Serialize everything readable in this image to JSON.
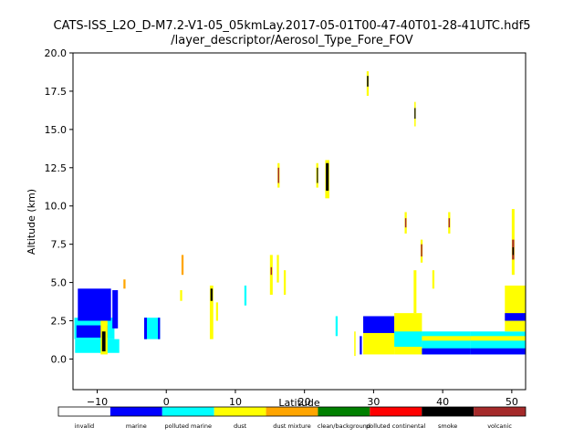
{
  "chart_data": {
    "type": "scatter",
    "title": "CATS-ISS_L2O_D-M7.2-V1-05_05kmLay.2017-05-01T00-47-40T01-28-41UTC.hdf5",
    "subtitle": "/layer_descriptor/Aerosol_Type_Fore_FOV",
    "xlabel": "Latitude",
    "ylabel": "Altitude (km)",
    "xlim": [
      -13.5,
      52
    ],
    "ylim": [
      -2,
      20
    ],
    "xticks": [
      -10,
      0,
      10,
      20,
      30,
      40,
      50
    ],
    "yticks": [
      0.0,
      2.5,
      5.0,
      7.5,
      10.0,
      12.5,
      15.0,
      17.5,
      20.0
    ],
    "ytick_labels": [
      "0.0",
      "2.5",
      "5.0",
      "7.5",
      "10.0",
      "12.5",
      "15.0",
      "17.5",
      "20.0"
    ],
    "grid": false,
    "colorbar": {
      "classes": [
        {
          "name": "invalid",
          "color": "#ffffff"
        },
        {
          "name": "marine",
          "color": "#0000ff"
        },
        {
          "name": "polluted marine",
          "color": "#00ffff"
        },
        {
          "name": "dust",
          "color": "#ffff00"
        },
        {
          "name": "dust mixture",
          "color": "#ffa500"
        },
        {
          "name": "clean/background",
          "color": "#008000"
        },
        {
          "name": "polluted continental",
          "color": "#ff0000"
        },
        {
          "name": "smoke",
          "color": "#000000"
        },
        {
          "name": "volcanic",
          "color": "#a52a2a"
        }
      ]
    },
    "layers": [
      {
        "x0": -13.3,
        "x1": -7.5,
        "y0": 1.3,
        "y1": 2.7,
        "type": "polluted marine"
      },
      {
        "x0": -13.2,
        "x1": -6.8,
        "y0": 0.4,
        "y1": 1.3,
        "type": "polluted marine"
      },
      {
        "x0": -13.0,
        "x1": -8.5,
        "y0": 1.4,
        "y1": 2.2,
        "type": "marine"
      },
      {
        "x0": -12.8,
        "x1": -8.0,
        "y0": 2.5,
        "y1": 4.6,
        "type": "marine"
      },
      {
        "x0": -9.5,
        "x1": -8.5,
        "y0": 0.3,
        "y1": 2.5,
        "type": "dust"
      },
      {
        "x0": -9.3,
        "x1": -8.8,
        "y0": 0.5,
        "y1": 1.8,
        "type": "smoke"
      },
      {
        "x0": -7.8,
        "x1": -7.0,
        "y0": 2.0,
        "y1": 4.5,
        "type": "marine"
      },
      {
        "x0": -6.2,
        "x1": -5.9,
        "y0": 4.6,
        "y1": 5.2,
        "type": "dust mixture"
      },
      {
        "x0": -3.2,
        "x1": -0.9,
        "y0": 1.3,
        "y1": 2.7,
        "type": "polluted marine"
      },
      {
        "x0": -3.2,
        "x1": -2.8,
        "y0": 1.3,
        "y1": 2.7,
        "type": "marine"
      },
      {
        "x0": -1.2,
        "x1": -0.9,
        "y0": 1.3,
        "y1": 2.7,
        "type": "marine"
      },
      {
        "x0": 2.2,
        "x1": 2.5,
        "y0": 5.5,
        "y1": 6.8,
        "type": "dust mixture"
      },
      {
        "x0": 2.0,
        "x1": 2.3,
        "y0": 3.8,
        "y1": 4.5,
        "type": "dust"
      },
      {
        "x0": 6.3,
        "x1": 6.8,
        "y0": 1.3,
        "y1": 4.8,
        "type": "dust"
      },
      {
        "x0": 6.4,
        "x1": 6.7,
        "y0": 3.8,
        "y1": 4.6,
        "type": "smoke"
      },
      {
        "x0": 7.2,
        "x1": 7.5,
        "y0": 2.5,
        "y1": 3.7,
        "type": "dust"
      },
      {
        "x0": 11.3,
        "x1": 11.6,
        "y0": 3.5,
        "y1": 4.8,
        "type": "polluted marine"
      },
      {
        "x0": 15.0,
        "x1": 15.4,
        "y0": 4.2,
        "y1": 6.8,
        "type": "dust"
      },
      {
        "x0": 15.1,
        "x1": 15.3,
        "y0": 5.5,
        "y1": 6.0,
        "type": "volcanic"
      },
      {
        "x0": 16.0,
        "x1": 16.3,
        "y0": 5.0,
        "y1": 6.8,
        "type": "dust"
      },
      {
        "x0": 16.1,
        "x1": 16.4,
        "y0": 11.2,
        "y1": 12.8,
        "type": "dust"
      },
      {
        "x0": 16.15,
        "x1": 16.35,
        "y0": 11.5,
        "y1": 12.5,
        "type": "volcanic"
      },
      {
        "x0": 17.0,
        "x1": 17.3,
        "y0": 4.2,
        "y1": 5.8,
        "type": "dust"
      },
      {
        "x0": 21.7,
        "x1": 22.0,
        "y0": 11.2,
        "y1": 12.8,
        "type": "dust"
      },
      {
        "x0": 21.8,
        "x1": 21.95,
        "y0": 11.5,
        "y1": 12.5,
        "type": "smoke"
      },
      {
        "x0": 23.0,
        "x1": 23.6,
        "y0": 10.5,
        "y1": 13.0,
        "type": "dust"
      },
      {
        "x0": 23.1,
        "x1": 23.5,
        "y0": 11.0,
        "y1": 12.8,
        "type": "smoke"
      },
      {
        "x0": 24.5,
        "x1": 24.8,
        "y0": 1.5,
        "y1": 2.8,
        "type": "polluted marine"
      },
      {
        "x0": 27.2,
        "x1": 27.4,
        "y0": 0.2,
        "y1": 1.8,
        "type": "dust"
      },
      {
        "x0": 28.0,
        "x1": 28.3,
        "y0": 0.3,
        "y1": 1.5,
        "type": "marine"
      },
      {
        "x0": 28.5,
        "x1": 33.0,
        "y0": 0.3,
        "y1": 2.8,
        "type": "dust"
      },
      {
        "x0": 28.5,
        "x1": 33.0,
        "y0": 1.7,
        "y1": 2.8,
        "type": "marine"
      },
      {
        "x0": 29.0,
        "x1": 29.3,
        "y0": 17.2,
        "y1": 18.8,
        "type": "dust"
      },
      {
        "x0": 29.05,
        "x1": 29.25,
        "y0": 17.8,
        "y1": 18.5,
        "type": "smoke"
      },
      {
        "x0": 33.0,
        "x1": 37.0,
        "y0": 0.3,
        "y1": 3.0,
        "type": "dust"
      },
      {
        "x0": 33.0,
        "x1": 37.0,
        "y0": 0.8,
        "y1": 1.8,
        "type": "polluted marine"
      },
      {
        "x0": 34.5,
        "x1": 34.8,
        "y0": 8.2,
        "y1": 9.6,
        "type": "dust"
      },
      {
        "x0": 34.55,
        "x1": 34.75,
        "y0": 8.6,
        "y1": 9.2,
        "type": "volcanic"
      },
      {
        "x0": 35.8,
        "x1": 36.2,
        "y0": 3.0,
        "y1": 5.8,
        "type": "dust"
      },
      {
        "x0": 35.9,
        "x1": 36.1,
        "y0": 15.2,
        "y1": 16.8,
        "type": "dust"
      },
      {
        "x0": 35.92,
        "x1": 36.08,
        "y0": 15.7,
        "y1": 16.4,
        "type": "smoke"
      },
      {
        "x0": 36.8,
        "x1": 37.1,
        "y0": 6.3,
        "y1": 7.8,
        "type": "dust"
      },
      {
        "x0": 36.85,
        "x1": 37.05,
        "y0": 6.7,
        "y1": 7.5,
        "type": "volcanic"
      },
      {
        "x0": 37.0,
        "x1": 44.0,
        "y0": 0.3,
        "y1": 1.8,
        "type": "polluted marine"
      },
      {
        "x0": 37.0,
        "x1": 44.0,
        "y0": 0.3,
        "y1": 0.7,
        "type": "marine"
      },
      {
        "x0": 37.0,
        "x1": 44.0,
        "y0": 1.2,
        "y1": 1.5,
        "type": "dust"
      },
      {
        "x0": 38.5,
        "x1": 38.8,
        "y0": 4.6,
        "y1": 5.8,
        "type": "dust"
      },
      {
        "x0": 40.8,
        "x1": 41.1,
        "y0": 8.2,
        "y1": 9.6,
        "type": "dust"
      },
      {
        "x0": 40.85,
        "x1": 41.05,
        "y0": 8.6,
        "y1": 9.2,
        "type": "volcanic"
      },
      {
        "x0": 44.0,
        "x1": 52.0,
        "y0": 0.3,
        "y1": 1.8,
        "type": "polluted marine"
      },
      {
        "x0": 44.0,
        "x1": 52.0,
        "y0": 0.3,
        "y1": 0.7,
        "type": "marine"
      },
      {
        "x0": 44.0,
        "x1": 52.0,
        "y0": 1.2,
        "y1": 1.5,
        "type": "dust"
      },
      {
        "x0": 49.0,
        "x1": 52.0,
        "y0": 1.8,
        "y1": 4.8,
        "type": "dust"
      },
      {
        "x0": 49.0,
        "x1": 52.0,
        "y0": 2.5,
        "y1": 3.0,
        "type": "marine"
      },
      {
        "x0": 50.0,
        "x1": 50.4,
        "y0": 5.5,
        "y1": 9.8,
        "type": "dust"
      },
      {
        "x0": 50.05,
        "x1": 50.35,
        "y0": 6.5,
        "y1": 7.8,
        "type": "volcanic"
      },
      {
        "x0": 50.1,
        "x1": 50.3,
        "y0": 6.8,
        "y1": 7.3,
        "type": "smoke"
      }
    ]
  }
}
